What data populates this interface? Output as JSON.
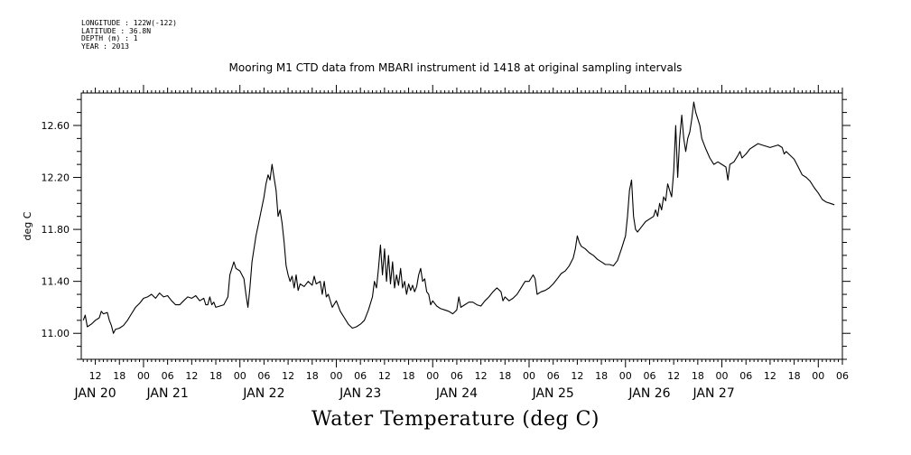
{
  "meta": {
    "longitude": "LONGITUDE : 122W(-122)",
    "latitude": "LATITUDE : 36.8N",
    "depth": "DEPTH (m) : 1",
    "year": "YEAR : 2013"
  },
  "chart_data": {
    "type": "line",
    "title": "Mooring M1 CTD data from MBARI instrument id 1418 at original sampling intervals",
    "subtitle": "Water Temperature (deg C)",
    "ylabel": "deg C",
    "xlabel": "",
    "ylim": [
      10.8,
      12.85
    ],
    "xlim_hours": [
      -15,
      163
    ],
    "yticks": [
      11.0,
      11.4,
      11.8,
      12.2,
      12.6
    ],
    "ytick_labels": [
      "11.00",
      "11.40",
      "11.80",
      "12.20",
      "12.60"
    ],
    "x_hour_ticks": [
      {
        "h": -12,
        "label": "12"
      },
      {
        "h": -6,
        "label": "18"
      },
      {
        "h": 0,
        "label": "00"
      },
      {
        "h": 6,
        "label": "06"
      },
      {
        "h": 12,
        "label": "12"
      },
      {
        "h": 18,
        "label": "18"
      },
      {
        "h": 24,
        "label": "00"
      },
      {
        "h": 30,
        "label": "06"
      },
      {
        "h": 36,
        "label": "12"
      },
      {
        "h": 42,
        "label": "18"
      },
      {
        "h": 48,
        "label": "00"
      },
      {
        "h": 54,
        "label": "06"
      },
      {
        "h": 60,
        "label": "12"
      },
      {
        "h": 66,
        "label": "18"
      },
      {
        "h": 72,
        "label": "00"
      },
      {
        "h": 78,
        "label": "06"
      },
      {
        "h": 84,
        "label": "12"
      },
      {
        "h": 90,
        "label": "18"
      },
      {
        "h": 96,
        "label": "00"
      },
      {
        "h": 102,
        "label": "06"
      },
      {
        "h": 108,
        "label": "12"
      },
      {
        "h": 114,
        "label": "18"
      },
      {
        "h": 120,
        "label": "00"
      },
      {
        "h": 126,
        "label": "06"
      },
      {
        "h": 132,
        "label": "12"
      },
      {
        "h": 138,
        "label": "18"
      },
      {
        "h": 144,
        "label": "00"
      },
      {
        "h": 150,
        "label": "06"
      },
      {
        "h": 156,
        "label": "12"
      },
      {
        "h": 162,
        "label": "18"
      },
      {
        "h": 168,
        "label": "00"
      },
      {
        "h": 174,
        "label": "06"
      }
    ],
    "x_day_labels": [
      {
        "h": -12,
        "label": "JAN 20"
      },
      {
        "h": 6,
        "label": "JAN 21"
      },
      {
        "h": 30,
        "label": "JAN 22"
      },
      {
        "h": 54,
        "label": "JAN 23"
      },
      {
        "h": 78,
        "label": "JAN 24"
      },
      {
        "h": 102,
        "label": "JAN 25"
      },
      {
        "h": 126,
        "label": "JAN 26"
      },
      {
        "h": 142,
        "label": "JAN 27"
      }
    ],
    "series": [
      {
        "points": [
          [
            -15,
            11.1
          ],
          [
            -14.5,
            11.14
          ],
          [
            -14,
            11.05
          ],
          [
            -13,
            11.07
          ],
          [
            -12,
            11.1
          ],
          [
            -11,
            11.12
          ],
          [
            -10.5,
            11.17
          ],
          [
            -10,
            11.15
          ],
          [
            -9,
            11.16
          ],
          [
            -8.5,
            11.1
          ],
          [
            -8,
            11.06
          ],
          [
            -7.5,
            11.0
          ],
          [
            -7,
            11.03
          ],
          [
            -6,
            11.04
          ],
          [
            -5,
            11.06
          ],
          [
            -4,
            11.1
          ],
          [
            -3,
            11.15
          ],
          [
            -2,
            11.2
          ],
          [
            -1,
            11.23
          ],
          [
            0,
            11.27
          ],
          [
            1,
            11.28
          ],
          [
            2,
            11.3
          ],
          [
            3,
            11.27
          ],
          [
            4,
            11.31
          ],
          [
            5,
            11.28
          ],
          [
            6,
            11.29
          ],
          [
            7,
            11.25
          ],
          [
            8,
            11.22
          ],
          [
            9,
            11.22
          ],
          [
            10,
            11.25
          ],
          [
            11,
            11.28
          ],
          [
            12,
            11.27
          ],
          [
            13,
            11.29
          ],
          [
            14,
            11.25
          ],
          [
            15,
            11.27
          ],
          [
            15.5,
            11.22
          ],
          [
            16,
            11.22
          ],
          [
            16.5,
            11.28
          ],
          [
            17,
            11.22
          ],
          [
            17.5,
            11.24
          ],
          [
            18,
            11.2
          ],
          [
            19,
            11.21
          ],
          [
            20,
            11.22
          ],
          [
            21,
            11.28
          ],
          [
            21.5,
            11.45
          ],
          [
            22,
            11.5
          ],
          [
            22.5,
            11.55
          ],
          [
            23,
            11.5
          ],
          [
            24,
            11.48
          ],
          [
            25,
            11.42
          ],
          [
            25.5,
            11.3
          ],
          [
            26,
            11.2
          ],
          [
            26.5,
            11.35
          ],
          [
            27,
            11.55
          ],
          [
            28,
            11.75
          ],
          [
            29,
            11.9
          ],
          [
            30,
            12.05
          ],
          [
            30.5,
            12.15
          ],
          [
            31,
            12.22
          ],
          [
            31.5,
            12.18
          ],
          [
            32,
            12.3
          ],
          [
            32.5,
            12.2
          ],
          [
            33,
            12.1
          ],
          [
            33.5,
            11.9
          ],
          [
            34,
            11.95
          ],
          [
            34.5,
            11.85
          ],
          [
            35,
            11.7
          ],
          [
            35.5,
            11.52
          ],
          [
            36,
            11.45
          ],
          [
            36.5,
            11.4
          ],
          [
            37,
            11.44
          ],
          [
            37.5,
            11.35
          ],
          [
            38,
            11.45
          ],
          [
            38.5,
            11.33
          ],
          [
            39,
            11.38
          ],
          [
            40,
            11.36
          ],
          [
            41,
            11.4
          ],
          [
            42,
            11.37
          ],
          [
            42.5,
            11.44
          ],
          [
            43,
            11.38
          ],
          [
            44,
            11.4
          ],
          [
            44.5,
            11.3
          ],
          [
            45,
            11.4
          ],
          [
            45.5,
            11.28
          ],
          [
            46,
            11.3
          ],
          [
            47,
            11.2
          ],
          [
            48,
            11.25
          ],
          [
            49,
            11.17
          ],
          [
            50,
            11.12
          ],
          [
            51,
            11.07
          ],
          [
            52,
            11.04
          ],
          [
            53,
            11.05
          ],
          [
            54,
            11.07
          ],
          [
            55,
            11.1
          ],
          [
            56,
            11.18
          ],
          [
            57,
            11.28
          ],
          [
            57.5,
            11.4
          ],
          [
            58,
            11.35
          ],
          [
            58.5,
            11.5
          ],
          [
            59,
            11.68
          ],
          [
            59.5,
            11.45
          ],
          [
            60,
            11.65
          ],
          [
            60.5,
            11.4
          ],
          [
            61,
            11.6
          ],
          [
            61.5,
            11.38
          ],
          [
            62,
            11.55
          ],
          [
            62.5,
            11.35
          ],
          [
            63,
            11.45
          ],
          [
            63.5,
            11.37
          ],
          [
            64,
            11.5
          ],
          [
            64.5,
            11.35
          ],
          [
            65,
            11.4
          ],
          [
            65.5,
            11.3
          ],
          [
            66,
            11.38
          ],
          [
            66.5,
            11.33
          ],
          [
            67,
            11.37
          ],
          [
            67.5,
            11.32
          ],
          [
            68,
            11.36
          ],
          [
            68.5,
            11.45
          ],
          [
            69,
            11.5
          ],
          [
            69.5,
            11.4
          ],
          [
            70,
            11.42
          ],
          [
            70.5,
            11.32
          ],
          [
            71,
            11.3
          ],
          [
            71.5,
            11.22
          ],
          [
            72,
            11.25
          ],
          [
            73,
            11.21
          ],
          [
            74,
            11.19
          ],
          [
            75,
            11.18
          ],
          [
            76,
            11.17
          ],
          [
            77,
            11.15
          ],
          [
            78,
            11.18
          ],
          [
            78.5,
            11.28
          ],
          [
            79,
            11.2
          ],
          [
            80,
            11.22
          ],
          [
            81,
            11.24
          ],
          [
            82,
            11.24
          ],
          [
            83,
            11.22
          ],
          [
            84,
            11.21
          ],
          [
            85,
            11.25
          ],
          [
            86,
            11.28
          ],
          [
            87,
            11.32
          ],
          [
            88,
            11.35
          ],
          [
            89,
            11.32
          ],
          [
            89.5,
            11.25
          ],
          [
            90,
            11.28
          ],
          [
            91,
            11.25
          ],
          [
            92,
            11.27
          ],
          [
            93,
            11.3
          ],
          [
            94,
            11.35
          ],
          [
            95,
            11.4
          ],
          [
            96,
            11.4
          ],
          [
            97,
            11.45
          ],
          [
            97.5,
            11.42
          ],
          [
            98,
            11.3
          ],
          [
            99,
            11.32
          ],
          [
            100,
            11.33
          ],
          [
            101,
            11.35
          ],
          [
            102,
            11.38
          ],
          [
            103,
            11.42
          ],
          [
            104,
            11.46
          ],
          [
            105,
            11.48
          ],
          [
            106,
            11.52
          ],
          [
            107,
            11.58
          ],
          [
            107.5,
            11.65
          ],
          [
            108,
            11.75
          ],
          [
            108.5,
            11.7
          ],
          [
            109,
            11.67
          ],
          [
            110,
            11.65
          ],
          [
            111,
            11.62
          ],
          [
            112,
            11.6
          ],
          [
            113,
            11.57
          ],
          [
            114,
            11.55
          ],
          [
            115,
            11.53
          ],
          [
            116,
            11.53
          ],
          [
            117,
            11.52
          ],
          [
            118,
            11.56
          ],
          [
            119,
            11.65
          ],
          [
            120,
            11.75
          ],
          [
            120.5,
            11.9
          ],
          [
            121,
            12.1
          ],
          [
            121.5,
            12.18
          ],
          [
            122,
            11.9
          ],
          [
            122.5,
            11.8
          ],
          [
            123,
            11.78
          ],
          [
            124,
            11.82
          ],
          [
            125,
            11.86
          ],
          [
            126,
            11.88
          ],
          [
            127,
            11.9
          ],
          [
            127.5,
            11.95
          ],
          [
            128,
            11.9
          ],
          [
            128.5,
            12.0
          ],
          [
            129,
            11.95
          ],
          [
            129.5,
            12.05
          ],
          [
            130,
            12.02
          ],
          [
            130.5,
            12.15
          ],
          [
            131,
            12.1
          ],
          [
            131.5,
            12.05
          ],
          [
            132,
            12.25
          ],
          [
            132.5,
            12.6
          ],
          [
            133,
            12.2
          ],
          [
            133.5,
            12.5
          ],
          [
            134,
            12.68
          ],
          [
            134.5,
            12.5
          ],
          [
            135,
            12.4
          ],
          [
            135.5,
            12.5
          ],
          [
            136,
            12.55
          ],
          [
            136.5,
            12.65
          ],
          [
            137,
            12.78
          ],
          [
            137.5,
            12.7
          ],
          [
            138,
            12.65
          ],
          [
            138.5,
            12.6
          ],
          [
            139,
            12.5
          ],
          [
            140,
            12.42
          ],
          [
            141,
            12.35
          ],
          [
            142,
            12.3
          ],
          [
            143,
            12.32
          ],
          [
            144,
            12.3
          ],
          [
            145,
            12.28
          ],
          [
            145.5,
            12.18
          ],
          [
            146,
            12.3
          ],
          [
            147,
            12.32
          ],
          [
            148,
            12.37
          ],
          [
            148.5,
            12.4
          ],
          [
            149,
            12.35
          ],
          [
            150,
            12.38
          ],
          [
            151,
            12.42
          ],
          [
            152,
            12.44
          ],
          [
            153,
            12.46
          ],
          [
            154,
            12.45
          ],
          [
            155,
            12.44
          ],
          [
            156,
            12.43
          ],
          [
            157,
            12.44
          ],
          [
            158,
            12.45
          ],
          [
            159,
            12.43
          ],
          [
            159.5,
            12.38
          ],
          [
            160,
            12.4
          ],
          [
            161,
            12.37
          ],
          [
            162,
            12.34
          ],
          [
            163,
            12.28
          ],
          [
            164,
            12.22
          ],
          [
            165,
            12.2
          ],
          [
            166,
            12.17
          ],
          [
            167,
            12.12
          ],
          [
            168,
            12.08
          ],
          [
            169,
            12.03
          ],
          [
            170,
            12.01
          ],
          [
            171,
            12.0
          ],
          [
            172,
            11.99
          ]
        ]
      }
    ]
  }
}
